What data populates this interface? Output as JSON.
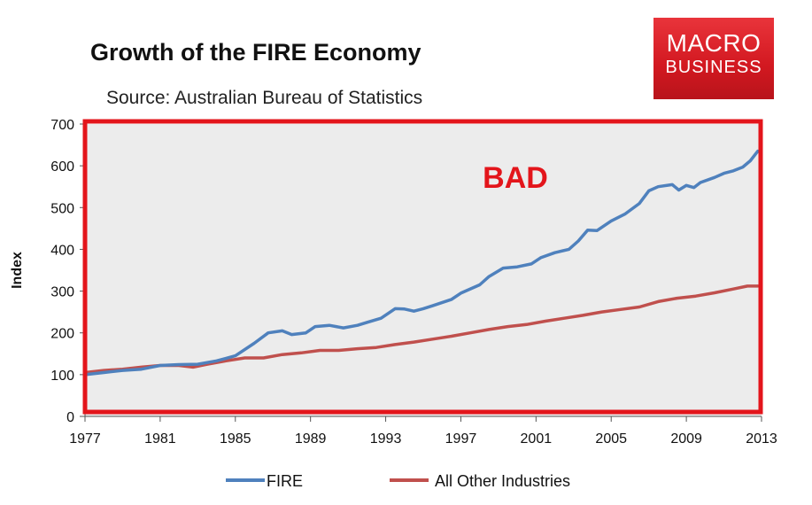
{
  "chart_data": {
    "type": "line",
    "title": "Growth of the FIRE Economy",
    "subtitle": "Source: Australian Bureau of Statistics",
    "xlabel": "",
    "ylabel": "Index",
    "xlim": [
      1977,
      2013
    ],
    "ylim": [
      0,
      700
    ],
    "x_ticks": [
      "1977",
      "1981",
      "1985",
      "1989",
      "1993",
      "1997",
      "2001",
      "2005",
      "2009",
      "2013"
    ],
    "y_ticks": [
      "0",
      "100",
      "200",
      "300",
      "400",
      "500",
      "600",
      "700"
    ],
    "grid": false,
    "legend_position": "bottom",
    "annotation": "BAD",
    "annotation_color": "#e3151b",
    "plot_area_color": "#ececec",
    "series": [
      {
        "name": "FIRE",
        "color": "#4f81bd",
        "points": [
          [
            1977,
            100
          ],
          [
            1978,
            105
          ],
          [
            1979,
            110
          ],
          [
            1980,
            113
          ],
          [
            1981,
            122
          ],
          [
            1982,
            124
          ],
          [
            1983,
            125
          ],
          [
            1984,
            133
          ],
          [
            1985,
            145
          ],
          [
            1986,
            175
          ],
          [
            1986.75,
            200
          ],
          [
            1987.5,
            205
          ],
          [
            1988,
            196
          ],
          [
            1988.75,
            200
          ],
          [
            1989.25,
            215
          ],
          [
            1990,
            218
          ],
          [
            1990.75,
            212
          ],
          [
            1991.5,
            218
          ],
          [
            1992,
            225
          ],
          [
            1992.75,
            235
          ],
          [
            1993.5,
            258
          ],
          [
            1994,
            257
          ],
          [
            1994.5,
            252
          ],
          [
            1995,
            258
          ],
          [
            1995.5,
            265
          ],
          [
            1996.5,
            280
          ],
          [
            1997,
            295
          ],
          [
            1998,
            315
          ],
          [
            1998.5,
            335
          ],
          [
            1999.25,
            355
          ],
          [
            2000,
            358
          ],
          [
            2000.75,
            365
          ],
          [
            2001.25,
            380
          ],
          [
            2002,
            392
          ],
          [
            2002.75,
            400
          ],
          [
            2003.25,
            420
          ],
          [
            2003.75,
            446
          ],
          [
            2004.25,
            445
          ],
          [
            2005,
            468
          ],
          [
            2005.75,
            485
          ],
          [
            2006.5,
            510
          ],
          [
            2007,
            540
          ],
          [
            2007.5,
            550
          ],
          [
            2008.25,
            555
          ],
          [
            2008.6,
            542
          ],
          [
            2009,
            553
          ],
          [
            2009.4,
            548
          ],
          [
            2009.75,
            560
          ],
          [
            2010.5,
            572
          ],
          [
            2011,
            582
          ],
          [
            2011.5,
            588
          ],
          [
            2012,
            597
          ],
          [
            2012.4,
            612
          ],
          [
            2012.8,
            635
          ]
        ]
      },
      {
        "name": "All Other Industries",
        "color": "#c0504d",
        "points": [
          [
            1977,
            105
          ],
          [
            1978,
            110
          ],
          [
            1979,
            113
          ],
          [
            1980,
            118
          ],
          [
            1981,
            122
          ],
          [
            1982,
            122
          ],
          [
            1982.75,
            118
          ],
          [
            1983.5,
            125
          ],
          [
            1984.5,
            133
          ],
          [
            1985.5,
            140
          ],
          [
            1986.5,
            140
          ],
          [
            1987.5,
            148
          ],
          [
            1988.5,
            152
          ],
          [
            1989.5,
            158
          ],
          [
            1990.5,
            158
          ],
          [
            1991.5,
            162
          ],
          [
            1992.5,
            165
          ],
          [
            1993.5,
            172
          ],
          [
            1994.5,
            178
          ],
          [
            1995.5,
            185
          ],
          [
            1996.5,
            192
          ],
          [
            1997.5,
            200
          ],
          [
            1998.5,
            208
          ],
          [
            1999.5,
            215
          ],
          [
            2000.5,
            220
          ],
          [
            2001.5,
            228
          ],
          [
            2002.5,
            235
          ],
          [
            2003.5,
            242
          ],
          [
            2004.5,
            250
          ],
          [
            2005.5,
            256
          ],
          [
            2006.5,
            262
          ],
          [
            2007.5,
            275
          ],
          [
            2008.5,
            283
          ],
          [
            2009.5,
            288
          ],
          [
            2010.5,
            296
          ],
          [
            2011.5,
            305
          ],
          [
            2012.25,
            312
          ],
          [
            2012.8,
            312
          ]
        ]
      }
    ]
  },
  "logo": {
    "line1": "MACRO",
    "line2": "BUSINESS"
  }
}
